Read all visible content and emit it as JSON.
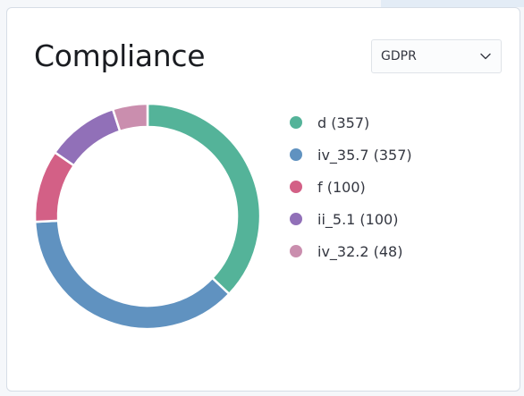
{
  "panel": {
    "title": "Compliance"
  },
  "filter": {
    "selected": "GDPR",
    "icon": "chevron-down-icon"
  },
  "chart_data": {
    "type": "pie",
    "style": "donut",
    "categories": [
      "d",
      "iv_35.7",
      "f",
      "ii_5.1",
      "iv_32.2"
    ],
    "values": [
      357,
      357,
      100,
      100,
      48
    ],
    "colors": [
      "#54b399",
      "#6092c0",
      "#d36086",
      "#9170b8",
      "#ca8eae"
    ],
    "legend_labels": [
      "d (357)",
      "iv_35.7 (357)",
      "f (100)",
      "ii_5.1 (100)",
      "iv_32.2 (48)"
    ],
    "legend_position": "right",
    "start_angle_deg": 0,
    "direction": "clockwise"
  }
}
